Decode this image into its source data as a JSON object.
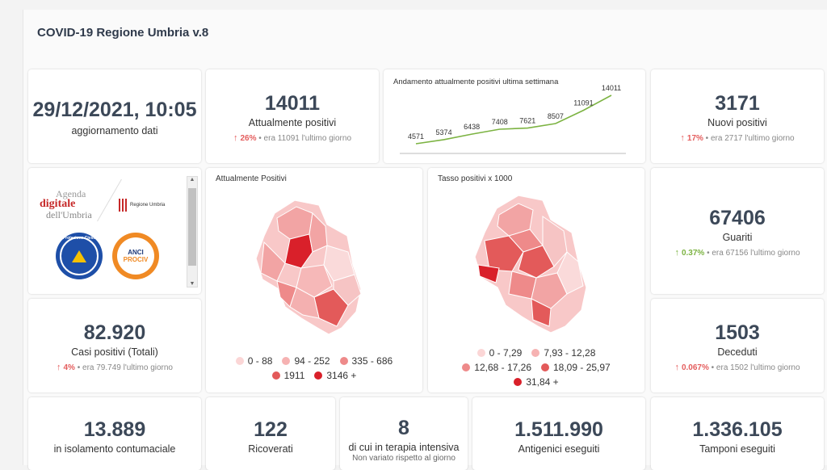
{
  "app_title": "COVID-19 Regione Umbria v.8",
  "update": {
    "datetime": "29/12/2021, 10:05",
    "label": "aggiornamento dati"
  },
  "attualmente_positivi": {
    "value": "14011",
    "label": "Attualmente positivi",
    "pct": "26%",
    "prev": "era 11091 l'ultimo giorno"
  },
  "trend": {
    "title": "Andamento attualmente positivi ultima settimana",
    "chart_data": {
      "type": "line",
      "values": [
        4571,
        5374,
        6438,
        7408,
        7621,
        8507,
        11091,
        14011
      ],
      "labels": [
        "4571",
        "5374",
        "6438",
        "7408",
        "7621",
        "8507",
        "11091",
        "14011"
      ],
      "color": "#7cb342"
    }
  },
  "nuovi_positivi": {
    "value": "3171",
    "label": "Nuovi positivi",
    "pct": "17%",
    "prev": "era 2717 l'ultimo giorno"
  },
  "logos": {
    "agenda_line1": "Agenda",
    "agenda_line2": "digitale",
    "agenda_line3": "dell'Umbria",
    "regione": "Regione Umbria",
    "protezione": "Protezione Civile",
    "anci_line1": "ANCI",
    "anci_line2": "PROCIV"
  },
  "map1": {
    "title": "Attualmente Positivi",
    "legend": [
      {
        "label": "0 - 88",
        "color": "#fbd6d6"
      },
      {
        "label": "94 - 252",
        "color": "#f6b2b2"
      },
      {
        "label": "335 - 686",
        "color": "#ee8a8a"
      },
      {
        "label": "1911",
        "color": "#e35a5a"
      },
      {
        "label": "3146 +",
        "color": "#d9202a"
      }
    ]
  },
  "map2": {
    "title": "Tasso positivi x 1000",
    "legend": [
      {
        "label": "0 - 7,29",
        "color": "#fbd6d6"
      },
      {
        "label": "7,93 - 12,28",
        "color": "#f6b2b2"
      },
      {
        "label": "12,68 - 17,26",
        "color": "#ee8a8a"
      },
      {
        "label": "18,09 - 25,97",
        "color": "#e35a5a"
      },
      {
        "label": "31,84 +",
        "color": "#d9202a"
      }
    ]
  },
  "guariti": {
    "value": "67406",
    "label": "Guariti",
    "pct": "0.37%",
    "prev": "era 67156 l'ultimo giorno"
  },
  "casi_totali": {
    "value": "82.920",
    "label": "Casi positivi (Totali)",
    "pct": "4%",
    "prev": "era 79.749 l'ultimo giorno"
  },
  "deceduti": {
    "value": "1503",
    "label": "Deceduti",
    "pct": "0.067%",
    "prev": "era 1502 l'ultimo giorno"
  },
  "isolamento": {
    "value": "13.889",
    "label": "in isolamento contumaciale"
  },
  "ricoverati": {
    "value": "122",
    "label": "Ricoverati"
  },
  "terapia": {
    "value": "8",
    "label": "di cui in terapia intensiva",
    "note": "Non variato rispetto al giorno"
  },
  "antigenici": {
    "value": "1.511.990",
    "label": "Antigenici eseguiti"
  },
  "tamponi": {
    "value": "1.336.105",
    "label": "Tamponi eseguiti"
  }
}
